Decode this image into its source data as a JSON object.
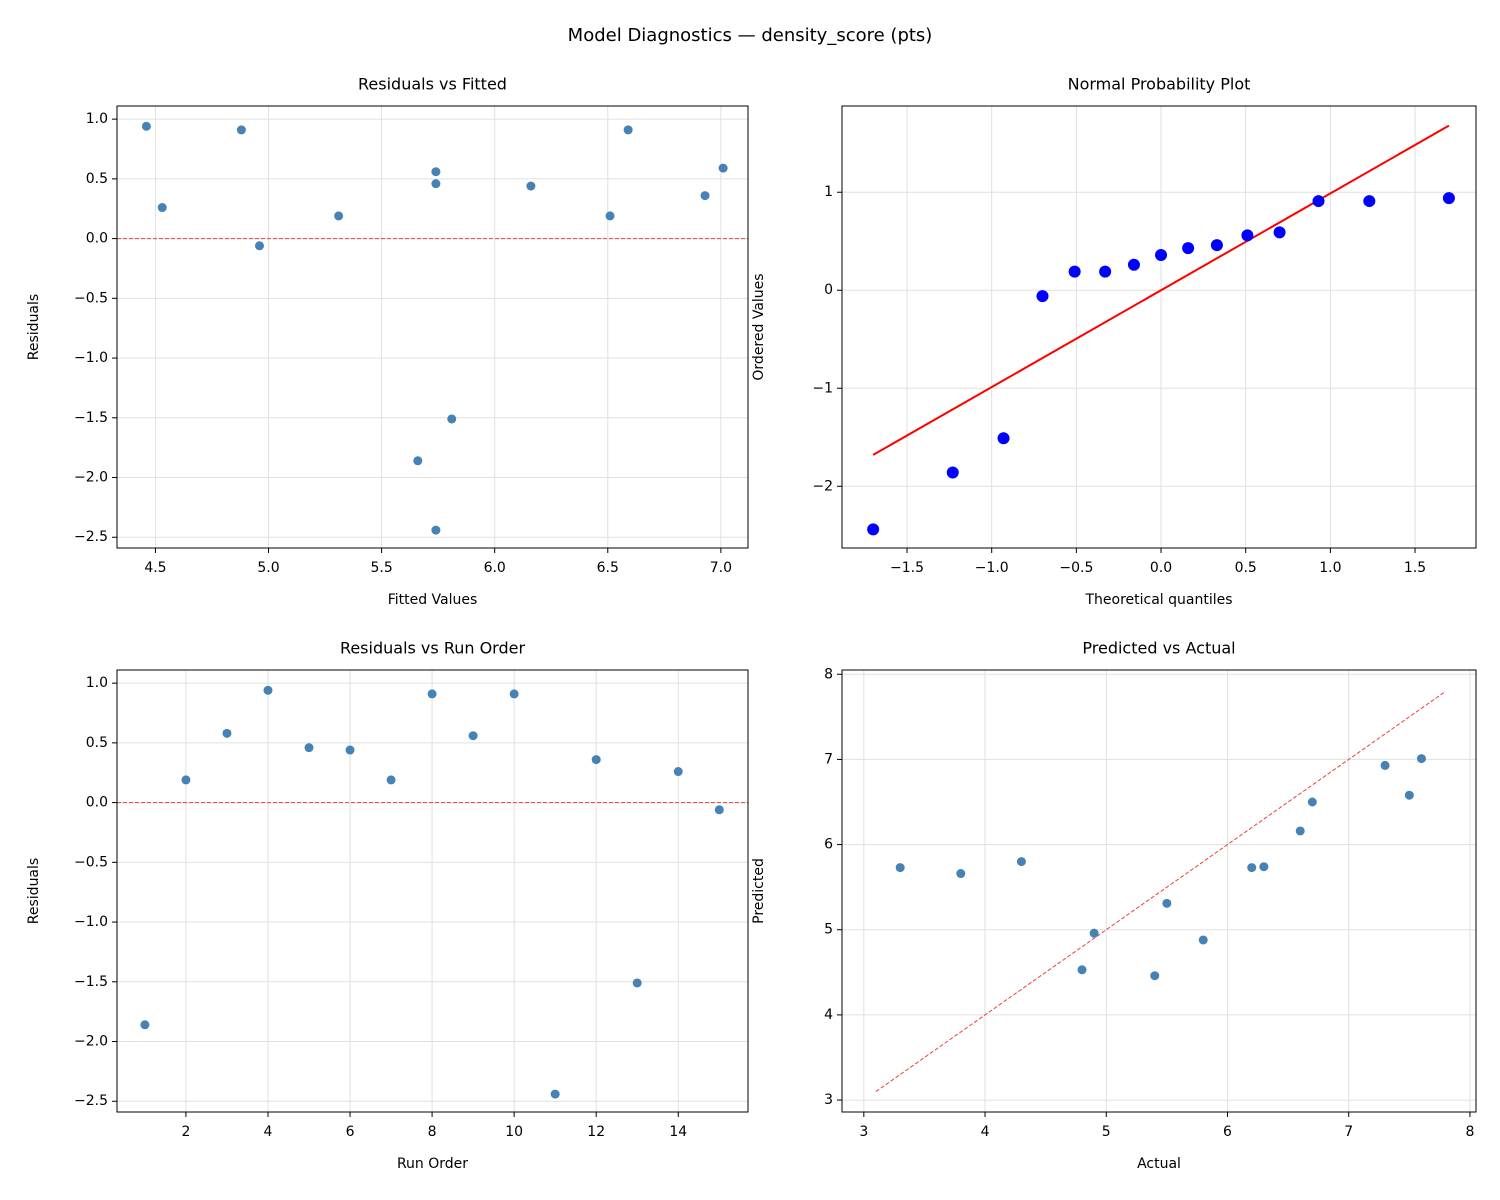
{
  "title": "Model Diagnostics — density_score (pts)",
  "chart_data": [
    {
      "type": "scatter",
      "title": "Residuals vs Fitted",
      "x_label": "Fitted Values",
      "y_label": "Residuals",
      "x": [
        4.46,
        4.53,
        4.88,
        4.96,
        5.31,
        5.74,
        5.74,
        6.16,
        6.51,
        6.59,
        6.93,
        7.01,
        5.66,
        5.81,
        5.74
      ],
      "values": [
        0.94,
        0.26,
        0.91,
        -0.06,
        0.19,
        0.56,
        0.46,
        0.44,
        0.19,
        0.91,
        0.36,
        0.59,
        -1.86,
        -1.51,
        -2.44
      ],
      "color": "#4682b4",
      "ref_line": 0,
      "ref_color": "#e8413c",
      "xlim": [
        4.33,
        7.12
      ],
      "ylim": [
        -2.59,
        1.11
      ],
      "xticks": [
        4.5,
        {
          "value": 5.0,
          "label": "5.0"
        },
        5.5,
        {
          "value": 6.0,
          "label": "6.0"
        },
        6.5,
        {
          "value": 7.0,
          "label": "7.0"
        }
      ],
      "yticks": [
        {
          "value": 1.0,
          "label": "1.0"
        },
        0.5,
        {
          "value": 0.0,
          "label": "0.0"
        },
        {
          "value": -0.5,
          "label": "−0.5"
        },
        {
          "value": -1.0,
          "label": "−1.0"
        },
        {
          "value": -1.5,
          "label": "−1.5"
        },
        {
          "value": -2.0,
          "label": "−2.0"
        },
        {
          "value": -2.5,
          "label": "−2.5"
        }
      ],
      "grid": true
    },
    {
      "type": "scatter",
      "title": "Normal Probability Plot",
      "x_label": "Theoretical quantiles",
      "y_label": "Ordered Values",
      "x": [
        -1.7,
        -1.23,
        -0.93,
        -0.7,
        -0.51,
        -0.33,
        -0.16,
        0,
        0.16,
        0.33,
        0.51,
        0.7,
        0.93,
        1.23,
        1.7
      ],
      "values": [
        -2.44,
        -1.86,
        -1.51,
        -0.06,
        0.19,
        0.19,
        0.26,
        0.36,
        0.43,
        0.46,
        0.56,
        0.59,
        0.91,
        0.91,
        0.94
      ],
      "color": "#0000ff",
      "marker_size": 6,
      "fit_line": {
        "x": [
          -1.7,
          1.7
        ],
        "values": [
          -1.68,
          1.68
        ],
        "color": "#ff0000"
      },
      "xlim": [
        -1.884,
        1.86
      ],
      "ylim": [
        -2.63,
        1.88
      ],
      "xticks": [
        {
          "value": -1.5,
          "label": "−1.5"
        },
        {
          "value": -1.0,
          "label": "−1.0"
        },
        {
          "value": -0.5,
          "label": "−0.5"
        },
        {
          "value": 0.0,
          "label": "0.0"
        },
        0.5,
        {
          "value": 1.0,
          "label": "1.0"
        },
        1.5
      ],
      "yticks": [
        1,
        0,
        {
          "value": -1,
          "label": "−1"
        },
        {
          "value": -2,
          "label": "−2"
        }
      ],
      "grid": true
    },
    {
      "type": "scatter",
      "title": "Residuals vs Run Order",
      "x_label": "Run Order",
      "y_label": "Residuals",
      "x": [
        1,
        2,
        3,
        4,
        5,
        6,
        7,
        8,
        9,
        10,
        11,
        12,
        13,
        14,
        15
      ],
      "values": [
        -1.86,
        0.19,
        0.58,
        0.94,
        0.46,
        0.44,
        0.19,
        0.91,
        0.56,
        0.91,
        -2.44,
        0.36,
        -1.51,
        0.26,
        -0.06
      ],
      "color": "#4682b4",
      "ref_line": 0,
      "ref_color": "#e8413c",
      "xlim": [
        0.32,
        15.7
      ],
      "ylim": [
        -2.59,
        1.11
      ],
      "xticks": [
        2,
        4,
        6,
        8,
        10,
        12,
        14
      ],
      "yticks": [
        {
          "value": 1.0,
          "label": "1.0"
        },
        0.5,
        {
          "value": 0.0,
          "label": "0.0"
        },
        {
          "value": -0.5,
          "label": "−0.5"
        },
        {
          "value": -1.0,
          "label": "−1.0"
        },
        {
          "value": -1.5,
          "label": "−1.5"
        },
        {
          "value": -2.0,
          "label": "−2.0"
        },
        {
          "value": -2.5,
          "label": "−2.5"
        }
      ],
      "grid": true
    },
    {
      "type": "scatter",
      "title": "Predicted vs Actual",
      "x_label": "Actual",
      "y_label": "Predicted",
      "x": [
        3.3,
        3.8,
        4.3,
        4.8,
        4.9,
        5.4,
        5.5,
        5.8,
        6.2,
        6.3,
        6.6,
        6.7,
        7.3,
        7.5,
        7.6
      ],
      "values": [
        5.73,
        5.66,
        5.8,
        4.53,
        4.96,
        4.46,
        5.31,
        4.88,
        5.73,
        5.74,
        6.16,
        6.5,
        6.93,
        6.58,
        7.01
      ],
      "color": "#4682b4",
      "ref_diag": {
        "x": [
          3.1,
          7.8
        ],
        "values": [
          3.1,
          7.8
        ],
        "color": "#e8413c"
      },
      "xlim": [
        2.82,
        8.05
      ],
      "ylim": [
        2.86,
        8.05
      ],
      "xticks": [
        3,
        4,
        5,
        6,
        7,
        8
      ],
      "yticks": [
        3,
        4,
        5,
        6,
        7,
        8
      ],
      "grid": true
    }
  ]
}
